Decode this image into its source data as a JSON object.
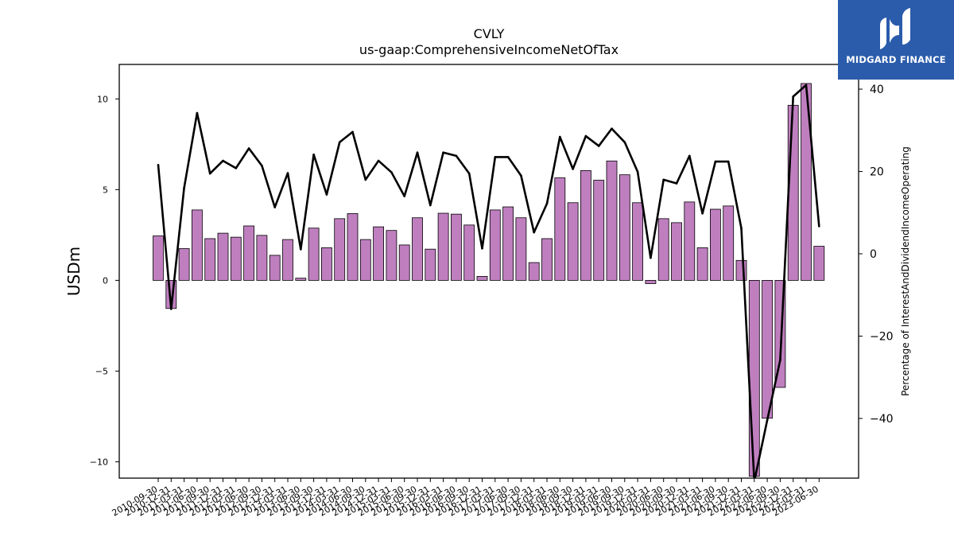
{
  "logo": {
    "text": "MIDGARD FINANCE"
  },
  "chart_data": {
    "type": "bar+line",
    "title": "CVLY",
    "subtitle": "us-gaap:ComprehensiveIncomeNetOfTax",
    "ylabel": "USDm",
    "ylabel_right": "Percentage of InterestAndDividendIncomeOperating",
    "ylim": [
      -10.9,
      11.9
    ],
    "ylim_right": [
      -54.5,
      46
    ],
    "yticks": [
      -10,
      -5,
      0,
      5,
      10
    ],
    "yticks_right": [
      -40,
      -20,
      0,
      20,
      40
    ],
    "grid": false,
    "bar_color": "#bf7fbf",
    "line_color": "#000000",
    "categories": [
      "2010-09-30",
      "2010-12-31",
      "2011-03-31",
      "2011-06-30",
      "2011-09-30",
      "2011-12-31",
      "2012-03-31",
      "2012-06-30",
      "2012-09-30",
      "2012-12-31",
      "2013-03-31",
      "2013-06-30",
      "2013-09-30",
      "2013-12-31",
      "2014-03-31",
      "2014-06-30",
      "2014-09-30",
      "2014-12-31",
      "2015-03-31",
      "2015-06-30",
      "2015-09-30",
      "2015-12-31",
      "2016-03-31",
      "2016-06-30",
      "2016-09-30",
      "2016-12-31",
      "2017-03-31",
      "2017-06-30",
      "2017-09-30",
      "2017-12-31",
      "2018-03-31",
      "2018-06-30",
      "2018-09-30",
      "2018-12-31",
      "2019-03-31",
      "2019-06-30",
      "2019-09-30",
      "2019-12-31",
      "2020-03-31",
      "2020-06-30",
      "2020-09-30",
      "2020-12-31",
      "2021-03-31",
      "2021-06-30",
      "2021-09-30",
      "2021-12-31",
      "2022-03-31",
      "2022-06-30",
      "2022-09-30",
      "2022-12-31",
      "2023-03-31",
      "2023-06-30"
    ],
    "series": [
      {
        "values": [
          2.45,
          -1.55,
          1.75,
          3.88,
          2.3,
          2.6,
          2.38,
          3.0,
          2.48,
          1.38,
          2.25,
          0.12,
          2.88,
          1.8,
          3.4,
          3.68,
          2.25,
          2.95,
          2.75,
          1.95,
          3.45,
          1.72,
          3.7,
          3.65,
          3.05,
          0.22,
          3.88,
          4.05,
          3.45,
          0.98,
          2.3,
          5.65,
          4.28,
          6.05,
          5.52,
          6.58,
          5.82,
          4.28,
          -0.18,
          3.4,
          3.18,
          4.32,
          1.8,
          3.92,
          4.1,
          1.1,
          -10.8,
          -7.6,
          -5.9,
          9.65,
          10.85,
          1.88
        ]
      },
      {
        "values": [
          21.6,
          -13.4,
          16.0,
          34.2,
          19.5,
          22.6,
          20.8,
          25.6,
          21.4,
          11.3,
          19.6,
          1.1,
          24.1,
          14.4,
          27.1,
          29.6,
          18.0,
          22.6,
          19.8,
          14.0,
          24.6,
          11.8,
          24.6,
          23.8,
          19.5,
          1.3,
          23.5,
          23.5,
          19.0,
          5.2,
          12.2,
          28.4,
          20.6,
          28.6,
          26.2,
          30.4,
          27.1,
          19.9,
          -1.0,
          18.0,
          17.1,
          23.8,
          9.8,
          22.4,
          22.4,
          6.2,
          -55.3,
          -40.4,
          -25.8,
          38.2,
          41.0,
          6.7
        ]
      }
    ]
  }
}
